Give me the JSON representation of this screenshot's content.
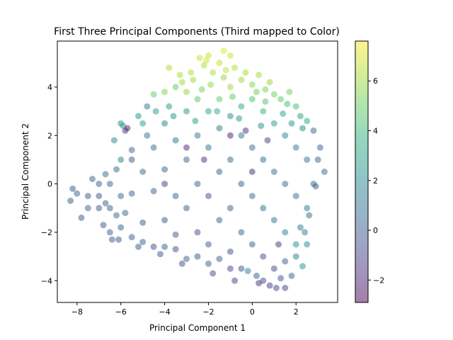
{
  "chart_data": {
    "type": "scatter",
    "title": "First Three Principal Components (Third mapped to Color)",
    "xlabel": "Principal Component 1",
    "ylabel": "Principal Component 2",
    "xlim": [
      -8.9,
      3.9
    ],
    "ylim": [
      -4.9,
      5.9
    ],
    "xticks": [
      -8,
      -6,
      -4,
      -2,
      0,
      2
    ],
    "xtick_labels": [
      "−8",
      "−6",
      "−4",
      "−2",
      "0",
      "2"
    ],
    "yticks": [
      -4,
      -2,
      0,
      2,
      4
    ],
    "ytick_labels": [
      "−4",
      "−2",
      "0",
      "2",
      "4"
    ],
    "colorbar": {
      "colormap": "viridis",
      "range": [
        -2.9,
        7.6
      ],
      "ticks": [
        -2,
        0,
        2,
        4,
        6
      ],
      "tick_labels": [
        "−2",
        "0",
        "2",
        "4",
        "6"
      ]
    },
    "marker_alpha": 0.5,
    "grid": false,
    "series": [
      {
        "points": [
          [
            -8.2,
            -0.2,
            0.1
          ],
          [
            -8.0,
            -0.4,
            0.2
          ],
          [
            -7.8,
            -1.4,
            -0.2
          ],
          [
            -8.3,
            -0.7,
            0.3
          ],
          [
            -7.5,
            -0.5,
            0.0
          ],
          [
            -7.3,
            0.2,
            0.5
          ],
          [
            -7.0,
            -1.0,
            0.0
          ],
          [
            -6.8,
            -1.7,
            -0.3
          ],
          [
            -6.5,
            -2.0,
            0.2
          ],
          [
            -6.4,
            -2.3,
            -0.1
          ],
          [
            -6.2,
            -1.3,
            0.5
          ],
          [
            -6.7,
            0.4,
            0.8
          ],
          [
            -6.0,
            1.0,
            1.5
          ],
          [
            -6.0,
            2.5,
            2.2
          ],
          [
            -5.8,
            2.2,
            -1.5
          ],
          [
            -6.3,
            1.8,
            1.8
          ],
          [
            -5.5,
            1.4,
            0.6
          ],
          [
            -5.0,
            2.5,
            3.0
          ],
          [
            -4.8,
            3.2,
            1.2
          ],
          [
            -4.5,
            3.7,
            5.0
          ],
          [
            -4.0,
            3.8,
            5.5
          ],
          [
            -3.8,
            4.8,
            6.3
          ],
          [
            -3.5,
            4.0,
            5.0
          ],
          [
            -3.3,
            4.5,
            6.2
          ],
          [
            -3.0,
            3.8,
            5.8
          ],
          [
            -2.7,
            4.3,
            6.1
          ],
          [
            -2.4,
            5.2,
            6.7
          ],
          [
            -2.2,
            4.9,
            6.3
          ],
          [
            -2.0,
            5.3,
            6.8
          ],
          [
            -1.8,
            4.6,
            6.2
          ],
          [
            -1.5,
            5.0,
            6.6
          ],
          [
            -1.3,
            4.4,
            5.9
          ],
          [
            -1.0,
            5.3,
            6.8
          ],
          [
            -0.8,
            4.8,
            6.4
          ],
          [
            -0.5,
            4.3,
            6.0
          ],
          [
            -0.3,
            4.6,
            6.2
          ],
          [
            0.0,
            4.1,
            5.6
          ],
          [
            0.3,
            4.5,
            6.1
          ],
          [
            0.6,
            3.9,
            5.4
          ],
          [
            1.0,
            3.7,
            5.2
          ],
          [
            1.3,
            3.5,
            5.0
          ],
          [
            1.7,
            3.8,
            5.3
          ],
          [
            2.0,
            3.2,
            4.3
          ],
          [
            2.2,
            2.8,
            3.0
          ],
          [
            2.5,
            2.6,
            3.4
          ],
          [
            2.8,
            2.2,
            0.5
          ],
          [
            3.1,
            1.5,
            0.3
          ],
          [
            3.3,
            0.5,
            0.6
          ],
          [
            3.0,
            1.0,
            0.2
          ],
          [
            2.9,
            -0.1,
            0.1
          ],
          [
            2.6,
            -1.3,
            1.0
          ],
          [
            2.4,
            -2.0,
            1.5
          ],
          [
            2.5,
            -2.5,
            2.0
          ],
          [
            2.3,
            -3.4,
            2.5
          ],
          [
            2.0,
            -3.0,
            1.5
          ],
          [
            1.8,
            -3.8,
            0.2
          ],
          [
            1.5,
            -4.3,
            -0.7
          ],
          [
            1.3,
            -3.9,
            -0.2
          ],
          [
            1.1,
            -4.3,
            -0.8
          ],
          [
            0.8,
            -4.2,
            -1.2
          ],
          [
            0.5,
            -4.0,
            -0.5
          ],
          [
            0.2,
            -3.8,
            0.0
          ],
          [
            -0.2,
            -3.6,
            1.5
          ],
          [
            -0.5,
            -3.5,
            -0.3
          ],
          [
            -1.0,
            -3.5,
            -0.8
          ],
          [
            -1.5,
            -3.1,
            0.1
          ],
          [
            -2.0,
            -3.3,
            0.3
          ],
          [
            -2.5,
            -3.0,
            -0.2
          ],
          [
            -3.0,
            -3.1,
            0.4
          ],
          [
            -3.5,
            -2.7,
            -0.5
          ],
          [
            -4.0,
            -2.6,
            0.2
          ],
          [
            -4.5,
            -2.6,
            -0.6
          ],
          [
            -5.0,
            -2.4,
            0.3
          ],
          [
            -5.5,
            -2.2,
            -0.1
          ],
          [
            -5.8,
            -1.2,
            0.5
          ],
          [
            -5.5,
            1.0,
            -0.3
          ],
          [
            -6.2,
            0.6,
            0.6
          ],
          [
            -7.0,
            0.0,
            0.1
          ],
          [
            -6.7,
            -0.8,
            0.4
          ],
          [
            -5.9,
            2.4,
            2.6
          ],
          [
            -5.5,
            -0.4,
            0.4
          ],
          [
            -5.0,
            0.5,
            0.7
          ],
          [
            -5.0,
            -1.6,
            0.0
          ],
          [
            -4.5,
            1.5,
            0.9
          ],
          [
            -4.5,
            -0.3,
            0.3
          ],
          [
            -4.0,
            2.5,
            1.6
          ],
          [
            -4.0,
            0.6,
            0.4
          ],
          [
            -4.0,
            -1.5,
            -0.2
          ],
          [
            -3.5,
            1.8,
            1.0
          ],
          [
            -3.5,
            -0.5,
            0.3
          ],
          [
            -3.5,
            -2.1,
            0.1
          ],
          [
            -3.0,
            3.0,
            2.5
          ],
          [
            -3.0,
            1.0,
            0.6
          ],
          [
            -3.0,
            -1.0,
            0.0
          ],
          [
            -2.5,
            3.5,
            4.8
          ],
          [
            -2.5,
            2.0,
            1.2
          ],
          [
            -2.5,
            0.0,
            0.2
          ],
          [
            -2.5,
            -2.0,
            -0.5
          ],
          [
            -2.0,
            3.0,
            3.2
          ],
          [
            -2.0,
            1.5,
            0.8
          ],
          [
            -2.0,
            -0.5,
            -0.3
          ],
          [
            -2.0,
            -2.5,
            0.0
          ],
          [
            -1.5,
            3.5,
            5.0
          ],
          [
            -1.5,
            2.3,
            1.3
          ],
          [
            -1.5,
            0.5,
            0.4
          ],
          [
            -1.5,
            -1.5,
            0.0
          ],
          [
            -1.0,
            4.0,
            6.0
          ],
          [
            -1.0,
            2.8,
            2.0
          ],
          [
            -1.0,
            1.0,
            0.5
          ],
          [
            -1.0,
            -1.0,
            0.1
          ],
          [
            -1.0,
            -2.8,
            -0.4
          ],
          [
            -0.5,
            3.2,
            3.5
          ],
          [
            -0.5,
            2.0,
            1.0
          ],
          [
            -0.5,
            0.0,
            0.3
          ],
          [
            -0.5,
            -2.0,
            0.5
          ],
          [
            0.0,
            3.5,
            4.5
          ],
          [
            0.0,
            1.5,
            0.8
          ],
          [
            0.0,
            -0.5,
            0.6
          ],
          [
            0.0,
            -2.5,
            0.2
          ],
          [
            0.5,
            3.0,
            3.8
          ],
          [
            0.5,
            1.0,
            0.7
          ],
          [
            0.5,
            -1.0,
            0.9
          ],
          [
            0.5,
            -3.0,
            -0.6
          ],
          [
            1.0,
            2.5,
            2.8
          ],
          [
            1.0,
            0.5,
            0.8
          ],
          [
            1.0,
            -1.5,
            1.2
          ],
          [
            1.0,
            -3.5,
            -0.7
          ],
          [
            1.5,
            2.0,
            1.8
          ],
          [
            1.5,
            0.0,
            0.7
          ],
          [
            1.5,
            -2.0,
            1.6
          ],
          [
            1.5,
            -3.2,
            0.3
          ],
          [
            2.0,
            1.5,
            1.2
          ],
          [
            2.0,
            -0.5,
            0.9
          ],
          [
            2.0,
            -2.5,
            2.2
          ],
          [
            2.5,
            1.0,
            0.8
          ],
          [
            2.5,
            -1.0,
            1.3
          ],
          [
            -7.5,
            -1.0,
            0.4
          ],
          [
            -7.0,
            -0.5,
            -0.2
          ],
          [
            -6.5,
            0.0,
            0.6
          ],
          [
            -6.5,
            -1.0,
            0.2
          ],
          [
            -6.0,
            -0.5,
            0.5
          ],
          [
            -6.0,
            -1.8,
            0.1
          ],
          [
            -4.8,
            2.0,
            1.1
          ],
          [
            -3.8,
            3.2,
            2.9
          ],
          [
            -3.2,
            4.2,
            6.0
          ],
          [
            -2.8,
            4.6,
            6.3
          ],
          [
            -1.2,
            4.7,
            6.5
          ],
          [
            0.2,
            3.8,
            5.2
          ],
          [
            0.8,
            4.2,
            5.9
          ],
          [
            1.8,
            2.5,
            2.3
          ],
          [
            2.8,
            0.0,
            0.5
          ],
          [
            2.2,
            -1.8,
            1.5
          ],
          [
            0.3,
            -4.1,
            -1.5
          ],
          [
            -0.8,
            -4.0,
            -0.9
          ],
          [
            -1.8,
            -3.7,
            -0.6
          ],
          [
            -3.2,
            -3.3,
            -0.4
          ],
          [
            -4.2,
            -2.9,
            -0.1
          ],
          [
            -5.2,
            -2.6,
            0.2
          ],
          [
            -6.1,
            -2.3,
            -0.2
          ],
          [
            -2.2,
            1.0,
            -1.6
          ],
          [
            -1.0,
            2.0,
            -2.0
          ],
          [
            0.0,
            0.5,
            -1.8
          ],
          [
            1.2,
            -2.5,
            -1.5
          ],
          [
            -3.0,
            1.5,
            -1.7
          ],
          [
            -5.7,
            2.3,
            -1.9
          ],
          [
            -4.0,
            0.0,
            -1.2
          ],
          [
            -0.3,
            2.2,
            -1.4
          ],
          [
            0.7,
            1.8,
            -1.0
          ],
          [
            -2.6,
            2.6,
            2.8
          ],
          [
            -1.6,
            3.0,
            3.4
          ],
          [
            -0.6,
            2.7,
            2.6
          ],
          [
            0.4,
            2.4,
            2.3
          ],
          [
            1.4,
            2.9,
            3.0
          ],
          [
            2.3,
            2.3,
            1.9
          ],
          [
            -3.6,
            2.8,
            2.2
          ],
          [
            -4.4,
            3.0,
            2.7
          ],
          [
            -5.2,
            2.8,
            2.4
          ],
          [
            -2.3,
            3.9,
            5.3
          ],
          [
            -1.9,
            4.1,
            5.8
          ],
          [
            -0.9,
            3.6,
            5.0
          ],
          [
            0.6,
            3.4,
            4.6
          ],
          [
            1.6,
            3.3,
            4.4
          ],
          [
            -1.3,
            5.5,
            7.2
          ],
          [
            -2.1,
            5.1,
            6.9
          ]
        ]
      }
    ]
  }
}
